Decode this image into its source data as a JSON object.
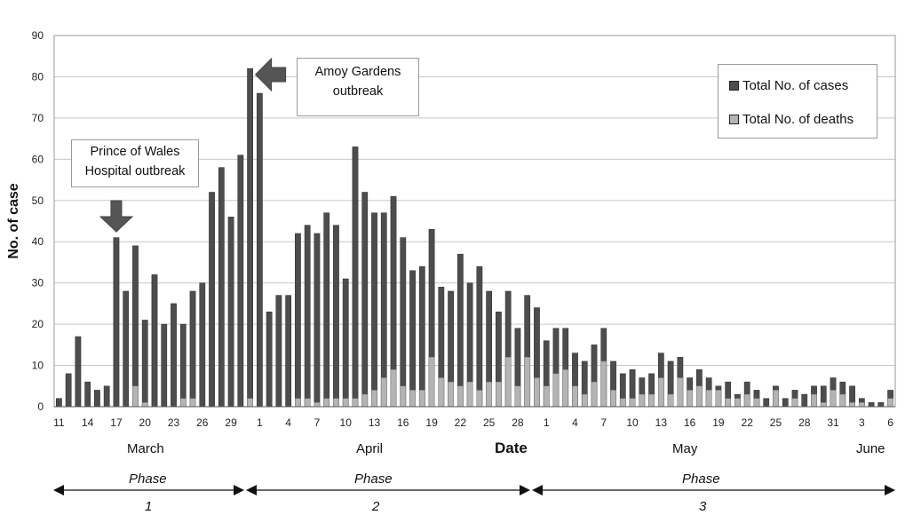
{
  "chart_data": {
    "type": "bar",
    "ylabel": "No. of case",
    "xlabel": "Date",
    "ylim": [
      0,
      90
    ],
    "yticks": [
      0,
      10,
      20,
      30,
      40,
      50,
      60,
      70,
      80,
      90
    ],
    "grid": true,
    "legend_position": "top-right",
    "series": [
      {
        "name": "Total No. of cases",
        "color": "#4d4d4d",
        "values": [
          2,
          8,
          17,
          6,
          4,
          5,
          41,
          28,
          39,
          21,
          32,
          20,
          25,
          20,
          28,
          30,
          52,
          58,
          46,
          61,
          82,
          76,
          23,
          27,
          27,
          42,
          44,
          42,
          47,
          44,
          31,
          63,
          52,
          47,
          47,
          51,
          41,
          33,
          34,
          43,
          29,
          28,
          37,
          30,
          34,
          28,
          23,
          28,
          19,
          27,
          24,
          16,
          19,
          19,
          13,
          11,
          15,
          19,
          11,
          8,
          9,
          7,
          8,
          13,
          11,
          12,
          7,
          9,
          7,
          5,
          6,
          3,
          6,
          4,
          2,
          5,
          2,
          4,
          3,
          5,
          5,
          7,
          6,
          5,
          2,
          1,
          1,
          4
        ]
      },
      {
        "name": "Total No. of deaths",
        "color": "#b4b4b4",
        "values": [
          0,
          0,
          0,
          0,
          0,
          0,
          0,
          0,
          5,
          1,
          0,
          0,
          0,
          2,
          2,
          0,
          0,
          0,
          0,
          0,
          2,
          0,
          0,
          0,
          0,
          2,
          2,
          1,
          2,
          2,
          2,
          2,
          3,
          4,
          7,
          9,
          5,
          4,
          4,
          12,
          7,
          6,
          5,
          6,
          4,
          6,
          6,
          12,
          5,
          12,
          7,
          5,
          8,
          9,
          5,
          3,
          6,
          11,
          4,
          2,
          2,
          3,
          3,
          7,
          3,
          7,
          4,
          5,
          4,
          4,
          2,
          2,
          3,
          2,
          0,
          4,
          0,
          2,
          0,
          3,
          1,
          4,
          3,
          1,
          1,
          0,
          0,
          2
        ]
      }
    ],
    "x_tick_labels": [
      "11",
      "14",
      "17",
      "20",
      "23",
      "26",
      "29",
      "1",
      "4",
      "7",
      "10",
      "13",
      "16",
      "19",
      "22",
      "25",
      "28",
      "1",
      "4",
      "7",
      "10",
      "13",
      "16",
      "19",
      "22",
      "25",
      "28",
      "31",
      "3",
      "6"
    ],
    "months": [
      "March",
      "April",
      "May",
      "June"
    ],
    "annotations": {
      "prince_of_wales": [
        "Prince of Wales",
        "Hospital outbreak"
      ],
      "amoy_gardens": [
        "Amoy Gardens",
        "outbreak"
      ]
    },
    "phases": [
      {
        "label": "Phase",
        "number": "1"
      },
      {
        "label": "Phase",
        "number": "2"
      },
      {
        "label": "Phase",
        "number": "3"
      }
    ]
  }
}
